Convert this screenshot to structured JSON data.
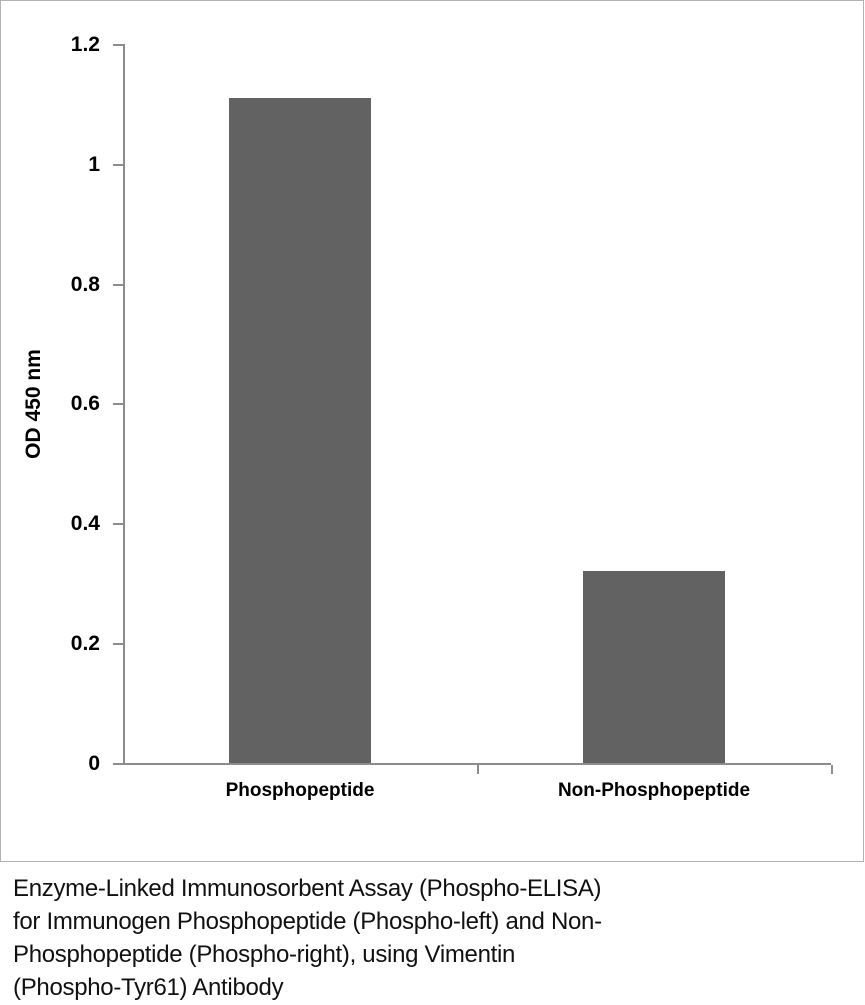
{
  "chart_data": {
    "type": "bar",
    "categories": [
      "Phosphopeptide",
      "Non-Phosphopeptide"
    ],
    "values": [
      1.11,
      0.32
    ],
    "title": "",
    "xlabel": "",
    "ylabel": "OD 450 nm",
    "ylim": [
      0,
      1.2
    ],
    "yticks": [
      0,
      0.2,
      0.4,
      0.6,
      0.8,
      1,
      1.2
    ],
    "ytick_labels": [
      "0",
      "0.2",
      "0.4",
      "0.6",
      "0.8",
      "1",
      "1.2"
    ],
    "grid": false,
    "legend_position": "none",
    "bar_color": "#626262",
    "axis_color": "#8c8c8c"
  },
  "caption": {
    "lines": [
      "Enzyme-Linked Immunosorbent Assay (Phospho-ELISA)",
      "for Immunogen Phosphopeptide (Phospho-left) and Non-",
      "Phosphopeptide (Phospho-right), using Vimentin",
      "(Phospho-Tyr61) Antibody"
    ]
  },
  "colors": {
    "frame_border": "#b2b2b2",
    "background": "#ffffff",
    "text": "#000000"
  }
}
